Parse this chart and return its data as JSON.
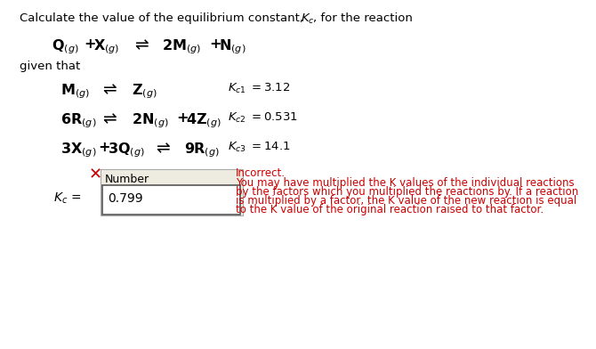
{
  "bg_color": "#ffffff",
  "text_color": "#000000",
  "red_color": "#cc0000",
  "box_bg": "#eeebe0",
  "input_bg": "#ffffff",
  "title": "Calculate the value of the equilibrium constant, ",
  "title2": "K",
  "title3": "c",
  "title4": ", for the reaction",
  "given_that": "given that",
  "answer_value": "0.799",
  "input_label": "Number",
  "incorrect_title": "Incorrect.",
  "incorrect_line1": "You may have multiplied the K values of the individual reactions",
  "incorrect_line2": "by the factors which you multiplied the reactions by. If a reaction",
  "incorrect_line3": "is multiplied by a factor, the K value of the new reaction is equal",
  "incorrect_line4": "to the K value of the original reaction raised to that factor."
}
